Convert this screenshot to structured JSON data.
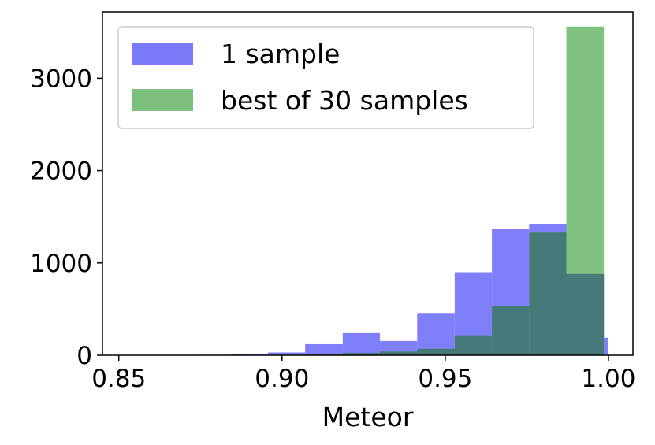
{
  "chart_data": {
    "type": "histogram",
    "title": "",
    "xlabel": "Meteor",
    "ylabel": "",
    "xlim": [
      0.845,
      1.0075
    ],
    "ylim": [
      0,
      3720
    ],
    "x_ticks": [
      "0.85",
      "0.90",
      "0.95",
      "1.00"
    ],
    "x_tick_values": [
      0.85,
      0.9,
      0.95,
      1.0
    ],
    "y_ticks": [
      "0",
      "1000",
      "2000",
      "3000"
    ],
    "y_tick_values": [
      0,
      1000,
      2000,
      3000
    ],
    "bin_edges": [
      0.85,
      0.8614,
      0.8729,
      0.8843,
      0.8957,
      0.9071,
      0.9186,
      0.93,
      0.9414,
      0.9529,
      0.9643,
      0.9757,
      0.9871,
      0.9986,
      1.0
    ],
    "grid": false,
    "legend_position": "upper-left",
    "series": [
      {
        "name": "1 sample",
        "color": "#7b7bf9",
        "alpha": 0.5,
        "bins": [
          {
            "x0": 0.85,
            "x1": 0.8614,
            "count": 0
          },
          {
            "x0": 0.8614,
            "x1": 0.8729,
            "count": 0
          },
          {
            "x0": 0.8729,
            "x1": 0.8843,
            "count": 5
          },
          {
            "x0": 0.8843,
            "x1": 0.8957,
            "count": 15
          },
          {
            "x0": 0.8957,
            "x1": 0.9071,
            "count": 30
          },
          {
            "x0": 0.9071,
            "x1": 0.9186,
            "count": 120
          },
          {
            "x0": 0.9186,
            "x1": 0.93,
            "count": 240
          },
          {
            "x0": 0.93,
            "x1": 0.9414,
            "count": 155
          },
          {
            "x0": 0.9414,
            "x1": 0.9529,
            "count": 450
          },
          {
            "x0": 0.9529,
            "x1": 0.9643,
            "count": 900
          },
          {
            "x0": 0.9643,
            "x1": 0.9757,
            "count": 1365
          },
          {
            "x0": 0.9757,
            "x1": 0.9871,
            "count": 1425
          },
          {
            "x0": 0.9871,
            "x1": 0.9986,
            "count": 880
          },
          {
            "x0": 0.9986,
            "x1": 1.0,
            "count": 190
          }
        ]
      },
      {
        "name": "best of 30 samples",
        "color": "#7cc07c",
        "alpha": 0.5,
        "bins": [
          {
            "x0": 0.8957,
            "x1": 0.9071,
            "count": 5
          },
          {
            "x0": 0.9071,
            "x1": 0.9186,
            "count": 10
          },
          {
            "x0": 0.9186,
            "x1": 0.93,
            "count": 25
          },
          {
            "x0": 0.93,
            "x1": 0.9414,
            "count": 40
          },
          {
            "x0": 0.9414,
            "x1": 0.9529,
            "count": 70
          },
          {
            "x0": 0.9529,
            "x1": 0.9643,
            "count": 215
          },
          {
            "x0": 0.9643,
            "x1": 0.9757,
            "count": 530
          },
          {
            "x0": 0.9757,
            "x1": 0.9871,
            "count": 1330
          },
          {
            "x0": 0.9871,
            "x1": 0.9986,
            "count": 3560
          }
        ]
      }
    ]
  }
}
